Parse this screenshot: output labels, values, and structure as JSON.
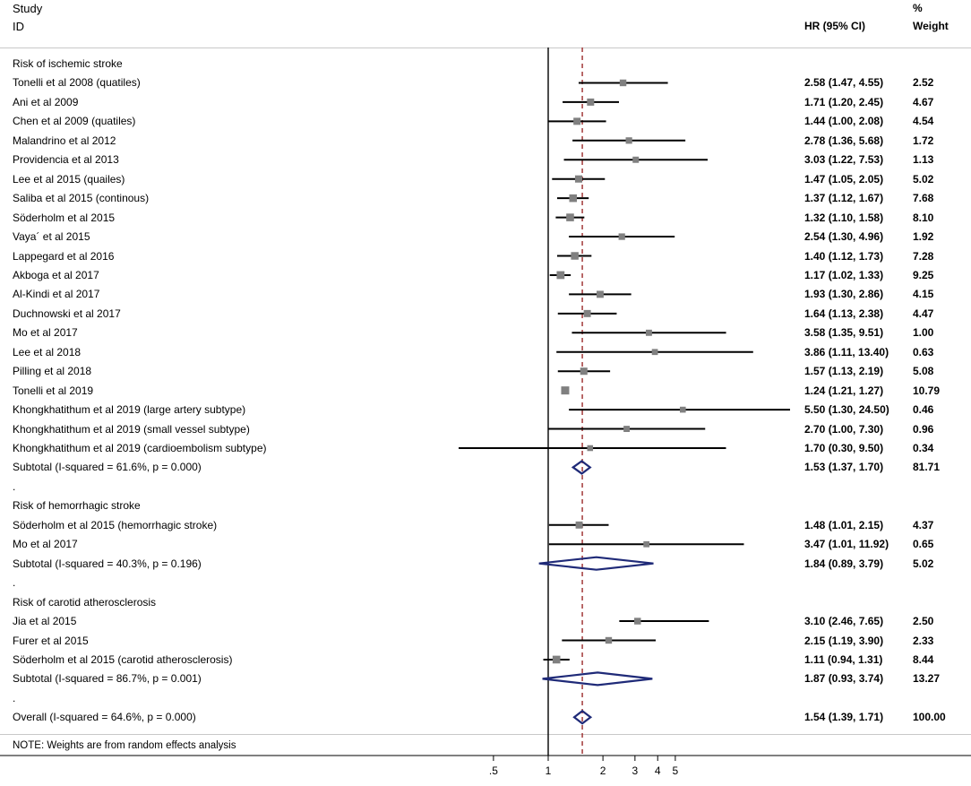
{
  "chart_data": {
    "type": "forest",
    "x_scale": "log",
    "xlim": [
      0.2,
      25
    ],
    "x_ticks": [
      ".5",
      "1",
      "2",
      "3",
      "4",
      "5"
    ],
    "x_tick_values": [
      0.5,
      1,
      2,
      3,
      4,
      5
    ],
    "null_line": 1,
    "overall_line": 1.54,
    "header": {
      "study_l1": "Study",
      "study_l2": "ID",
      "hr": "HR (95% CI)",
      "weight_l1": "%",
      "weight_l2": "Weight"
    },
    "note": "NOTE: Weights are from random effects analysis",
    "rows": [
      {
        "kind": "group",
        "label": "Risk of ischemic stroke"
      },
      {
        "kind": "study",
        "label": "Tonelli et al 2008 (quatiles)",
        "hr": 2.58,
        "lo": 1.47,
        "hi": 4.55,
        "hr_text": "2.58 (1.47, 4.55)",
        "weight": "2.52"
      },
      {
        "kind": "study",
        "label": "Ani et al 2009",
        "hr": 1.71,
        "lo": 1.2,
        "hi": 2.45,
        "hr_text": "1.71 (1.20, 2.45)",
        "weight": "4.67"
      },
      {
        "kind": "study",
        "label": "Chen et al 2009 (quatiles)",
        "hr": 1.44,
        "lo": 1.0,
        "hi": 2.08,
        "hr_text": "1.44 (1.00, 2.08)",
        "weight": "4.54"
      },
      {
        "kind": "study",
        "label": "Malandrino et al 2012",
        "hr": 2.78,
        "lo": 1.36,
        "hi": 5.68,
        "hr_text": "2.78 (1.36, 5.68)",
        "weight": "1.72"
      },
      {
        "kind": "study",
        "label": "Providencia et al 2013",
        "hr": 3.03,
        "lo": 1.22,
        "hi": 7.53,
        "hr_text": "3.03 (1.22, 7.53)",
        "weight": "1.13"
      },
      {
        "kind": "study",
        "label": "Lee et al 2015 (quailes)",
        "hr": 1.47,
        "lo": 1.05,
        "hi": 2.05,
        "hr_text": "1.47 (1.05, 2.05)",
        "weight": "5.02"
      },
      {
        "kind": "study",
        "label": "Saliba et al 2015 (continous)",
        "hr": 1.37,
        "lo": 1.12,
        "hi": 1.67,
        "hr_text": "1.37 (1.12, 1.67)",
        "weight": "7.68"
      },
      {
        "kind": "study",
        "label": "Söderholm  et al 2015",
        "hr": 1.32,
        "lo": 1.1,
        "hi": 1.58,
        "hr_text": "1.32 (1.10, 1.58)",
        "weight": "8.10"
      },
      {
        "kind": "study",
        "label": "Vaya´ et al 2015",
        "hr": 2.54,
        "lo": 1.3,
        "hi": 4.96,
        "hr_text": "2.54 (1.30, 4.96)",
        "weight": "1.92"
      },
      {
        "kind": "study",
        "label": "Lappegard et al 2016",
        "hr": 1.4,
        "lo": 1.12,
        "hi": 1.73,
        "hr_text": "1.40 (1.12, 1.73)",
        "weight": "7.28"
      },
      {
        "kind": "study",
        "label": "Akboga et al 2017",
        "hr": 1.17,
        "lo": 1.02,
        "hi": 1.33,
        "hr_text": "1.17 (1.02, 1.33)",
        "weight": "9.25"
      },
      {
        "kind": "study",
        "label": "Al-Kindi et al 2017",
        "hr": 1.93,
        "lo": 1.3,
        "hi": 2.86,
        "hr_text": "1.93 (1.30, 2.86)",
        "weight": "4.15"
      },
      {
        "kind": "study",
        "label": "Duchnowski  et al 2017",
        "hr": 1.64,
        "lo": 1.13,
        "hi": 2.38,
        "hr_text": "1.64 (1.13, 2.38)",
        "weight": "4.47"
      },
      {
        "kind": "study",
        "label": "Mo et al 2017",
        "hr": 3.58,
        "lo": 1.35,
        "hi": 9.51,
        "hr_text": "3.58 (1.35, 9.51)",
        "weight": "1.00"
      },
      {
        "kind": "study",
        "label": "Lee et al 2018",
        "hr": 3.86,
        "lo": 1.11,
        "hi": 13.4,
        "hr_text": "3.86 (1.11, 13.40)",
        "weight": "0.63"
      },
      {
        "kind": "study",
        "label": "Pilling et al 2018",
        "hr": 1.57,
        "lo": 1.13,
        "hi": 2.19,
        "hr_text": "1.57 (1.13, 2.19)",
        "weight": "5.08"
      },
      {
        "kind": "study",
        "label": "Tonelli et al 2019",
        "hr": 1.24,
        "lo": 1.21,
        "hi": 1.27,
        "hr_text": "1.24 (1.21, 1.27)",
        "weight": "10.79"
      },
      {
        "kind": "study",
        "label": "Khongkhatithum et al 2019 (large artery subtype)",
        "hr": 5.5,
        "lo": 1.3,
        "hi": 24.5,
        "hr_text": "5.50 (1.30, 24.50)",
        "weight": "0.46"
      },
      {
        "kind": "study",
        "label": "Khongkhatithum et al 2019 (small vessel subtype)",
        "hr": 2.7,
        "lo": 1.0,
        "hi": 7.3,
        "hr_text": "2.70 (1.00, 7.30)",
        "weight": "0.96"
      },
      {
        "kind": "study",
        "label": "Khongkhatithum et al 2019 (cardioembolism subtype)",
        "hr": 1.7,
        "lo": 0.3,
        "hi": 9.5,
        "hr_text": "1.70 (0.30, 9.50)",
        "weight": "0.34"
      },
      {
        "kind": "subtotal",
        "label": "Subtotal  (I-squared = 61.6%, p = 0.000)",
        "hr": 1.53,
        "lo": 1.37,
        "hi": 1.7,
        "hr_text": "1.53 (1.37, 1.70)",
        "weight": "81.71"
      },
      {
        "kind": "spacer",
        "label": "."
      },
      {
        "kind": "group",
        "label": "Risk of hemorrhagic stroke"
      },
      {
        "kind": "study",
        "label": "Söderholm  et al 2015 (hemorrhagic stroke)",
        "hr": 1.48,
        "lo": 1.01,
        "hi": 2.15,
        "hr_text": "1.48 (1.01, 2.15)",
        "weight": "4.37"
      },
      {
        "kind": "study",
        "label": "Mo et al 2017",
        "hr": 3.47,
        "lo": 1.01,
        "hi": 11.92,
        "hr_text": "3.47 (1.01, 11.92)",
        "weight": "0.65"
      },
      {
        "kind": "subtotal",
        "label": "Subtotal  (I-squared = 40.3%, p = 0.196)",
        "hr": 1.84,
        "lo": 0.89,
        "hi": 3.79,
        "hr_text": "1.84 (0.89, 3.79)",
        "weight": "5.02"
      },
      {
        "kind": "spacer",
        "label": "."
      },
      {
        "kind": "group",
        "label": "Risk of carotid atherosclerosis"
      },
      {
        "kind": "study",
        "label": "Jia et al 2015",
        "hr": 3.1,
        "lo": 2.46,
        "hi": 7.65,
        "hr_text": "3.10 (2.46, 7.65)",
        "weight": "2.50"
      },
      {
        "kind": "study",
        "label": "Furer et al 2015",
        "hr": 2.15,
        "lo": 1.19,
        "hi": 3.9,
        "hr_text": "2.15 (1.19, 3.90)",
        "weight": "2.33"
      },
      {
        "kind": "study",
        "label": "Söderholm  et al 2015 (carotid atherosclerosis)",
        "hr": 1.11,
        "lo": 0.94,
        "hi": 1.31,
        "hr_text": "1.11 (0.94, 1.31)",
        "weight": "8.44"
      },
      {
        "kind": "subtotal",
        "label": "Subtotal  (I-squared = 86.7%, p = 0.001)",
        "hr": 1.87,
        "lo": 0.93,
        "hi": 3.74,
        "hr_text": "1.87 (0.93, 3.74)",
        "weight": "13.27"
      },
      {
        "kind": "spacer",
        "label": "."
      },
      {
        "kind": "overall",
        "label": "Overall  (I-squared = 64.6%, p = 0.000)",
        "hr": 1.54,
        "lo": 1.39,
        "hi": 1.71,
        "hr_text": "1.54 (1.39, 1.71)",
        "weight": "100.00"
      }
    ],
    "colors": {
      "box": "#808080",
      "ci_line": "#000000",
      "diamond": "#1f2a78",
      "overall_line": "#9b2a2a",
      "rule": "#c8c8c8"
    }
  }
}
